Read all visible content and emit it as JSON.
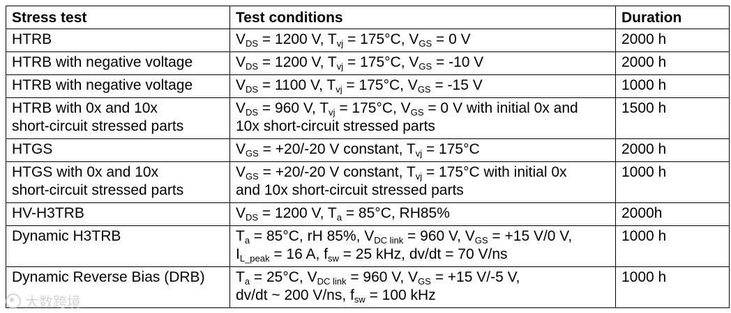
{
  "table": {
    "headers": [
      "Stress test",
      "Test conditions",
      "Duration"
    ],
    "rows": [
      {
        "test": [
          "HTRB"
        ],
        "conditions": [
          [
            "V",
            "DS",
            " = 1200 V, T",
            "vj",
            " = 175°C, V",
            "GS",
            " = 0 V"
          ]
        ],
        "duration": "2000 h"
      },
      {
        "test": [
          "HTRB with negative voltage"
        ],
        "conditions": [
          [
            "V",
            "DS",
            " = 1200 V, T",
            "vj",
            " = 175°C, V",
            "GS",
            " = -10 V"
          ]
        ],
        "duration": "2000 h"
      },
      {
        "test": [
          "HTRB with negative voltage"
        ],
        "conditions": [
          [
            "V",
            "DS",
            " = 1100 V, T",
            "vj",
            " = 175°C, V",
            "GS",
            " = -15 V"
          ]
        ],
        "duration": "1000 h"
      },
      {
        "test": [
          "HTRB with 0x and 10x",
          "short-circuit stressed parts"
        ],
        "conditions": [
          [
            "V",
            "DS",
            " = 960 V, T",
            "vj",
            " = 175°C, V",
            "GS",
            " = 0 V with initial 0x and"
          ],
          [
            "10x short-circuit stressed parts"
          ]
        ],
        "duration": "1500 h"
      },
      {
        "test": [
          "HTGS"
        ],
        "conditions": [
          [
            "V",
            "GS",
            " = +20/-20 V constant, T",
            "vj",
            " = 175°C"
          ]
        ],
        "duration": "2000 h"
      },
      {
        "test": [
          "HTGS with 0x and 10x",
          "short-circuit stressed parts"
        ],
        "conditions": [
          [
            "V",
            "GS",
            " = +20/-20 V constant, T",
            "vj",
            " = 175°C with initial 0x"
          ],
          [
            "and 10x short-circuit stressed parts"
          ]
        ],
        "duration": "1000 h"
      },
      {
        "test": [
          "HV-H3TRB"
        ],
        "conditions": [
          [
            "V",
            "DS",
            " = 1200 V, T",
            "a",
            " = 85°C, RH85%"
          ]
        ],
        "duration": "2000h"
      },
      {
        "test": [
          "Dynamic H3TRB"
        ],
        "conditions": [
          [
            "T",
            "a",
            " = 85°C, rH 85%, V",
            "DC link",
            " = 960 V, V",
            "GS",
            " = +15 V/0 V,"
          ],
          [
            "I",
            "L_peak",
            " = 16 A, f",
            "sw",
            " = 25 kHz, dv/dt = 70 V/ns"
          ]
        ],
        "duration": "1000 h"
      },
      {
        "test": [
          "Dynamic Reverse Bias (DRB)"
        ],
        "conditions": [
          [
            "T",
            "a",
            " = 25°C, V",
            "DC link",
            " = 960 V, V",
            "GS",
            " = +15 V/-5 V,"
          ],
          [
            "dv/dt ~ 200 V/ns, f",
            "sw",
            " = 100 kHz"
          ]
        ],
        "duration": "1000 h"
      }
    ]
  },
  "watermark": {
    "text": "大数跨境"
  }
}
